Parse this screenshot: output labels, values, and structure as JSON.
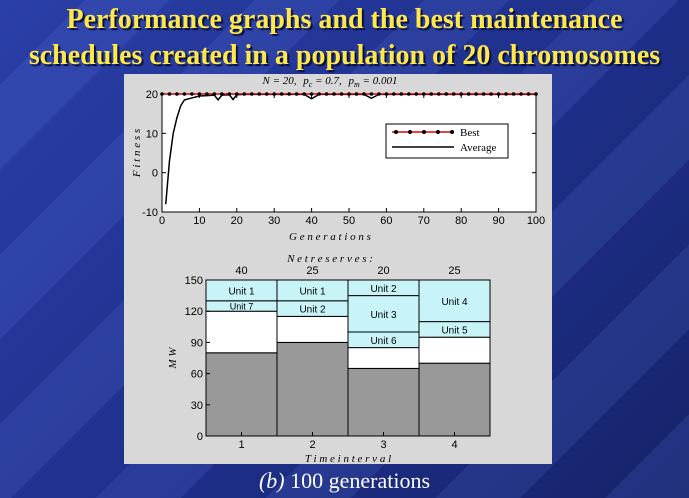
{
  "title": {
    "line1": "Performance graphs and the best maintenance",
    "line2": "schedules created in a population of 20 chromosomes"
  },
  "caption": {
    "label": "(b)",
    "text": "100 generations"
  },
  "colors": {
    "best": "#e00000",
    "average": "#000000",
    "unit_fill": "#c8f4f8",
    "base_fill": "#999999"
  },
  "chart_data": [
    {
      "type": "line",
      "title": "N = 20,  pc = 0.7,  pm = 0.001",
      "title_parts": {
        "n": "N = 20,",
        "pc": "p",
        "pc_sub": "c",
        "pc_val": " = 0.7,",
        "pm": "p",
        "pm_sub": "m",
        "pm_val": " = 0.001"
      },
      "xlabel": "G e n e r a t i o n s",
      "ylabel": "F i t n e s s",
      "xlim": [
        0,
        100
      ],
      "ylim": [
        -10,
        20
      ],
      "xticks": [
        0,
        10,
        20,
        30,
        40,
        50,
        60,
        70,
        80,
        90,
        100
      ],
      "yticks": [
        -10,
        0,
        10,
        20
      ],
      "legend": {
        "position": "top-right",
        "best": "Best",
        "average": "Average"
      },
      "series": [
        {
          "name": "Best",
          "x": [
            0,
            2,
            4,
            6,
            8,
            10,
            12,
            14,
            16,
            18,
            20,
            22,
            24,
            26,
            28,
            30,
            32,
            34,
            36,
            38,
            40,
            42,
            44,
            46,
            48,
            50,
            52,
            54,
            56,
            58,
            60,
            62,
            64,
            66,
            68,
            70,
            72,
            74,
            76,
            78,
            80,
            82,
            84,
            86,
            88,
            90,
            92,
            94,
            96,
            98,
            100
          ],
          "y": [
            20,
            20,
            20,
            20,
            20,
            20,
            20,
            20,
            20,
            20,
            20,
            20,
            20,
            20,
            20,
            20,
            20,
            20,
            20,
            20,
            20,
            20,
            20,
            20,
            20,
            20,
            20,
            20,
            20,
            20,
            20,
            20,
            20,
            20,
            20,
            20,
            20,
            20,
            20,
            20,
            20,
            20,
            20,
            20,
            20,
            20,
            20,
            20,
            20,
            20,
            20
          ]
        },
        {
          "name": "Average",
          "x": [
            1,
            2,
            3,
            4,
            5,
            6,
            8,
            10,
            12,
            14,
            15,
            16,
            18,
            19,
            20,
            22,
            30,
            38,
            40,
            42,
            50,
            54,
            56,
            58,
            60,
            100
          ],
          "y": [
            -8,
            3,
            10,
            14,
            17,
            18.5,
            19,
            19.5,
            19.6,
            19.7,
            18.5,
            19.7,
            19.8,
            18.6,
            19.8,
            19.9,
            19.9,
            19.9,
            18.8,
            19.9,
            19.9,
            19.9,
            18.9,
            19.9,
            19.9,
            19.9
          ]
        }
      ]
    },
    {
      "type": "bar",
      "title": "N e t   r e s e r v e s :",
      "xlabel": "T i m e   i n t e r v a l",
      "ylabel": "M W",
      "categories": [
        "1",
        "2",
        "3",
        "4"
      ],
      "net_reserves": [
        "40",
        "25",
        "20",
        "25"
      ],
      "ylim": [
        0,
        150
      ],
      "yticks": [
        0,
        30,
        60,
        90,
        120,
        150
      ],
      "base_load": [
        80,
        90,
        65,
        70
      ],
      "blocks": [
        [
          {
            "label": "",
            "from": 80,
            "to": 120,
            "filled": false
          },
          {
            "label": "Unit 7",
            "from": 120,
            "to": 130,
            "filled": true
          },
          {
            "label": "Unit 1",
            "from": 130,
            "to": 150,
            "filled": true
          }
        ],
        [
          {
            "label": "",
            "from": 90,
            "to": 115,
            "filled": false
          },
          {
            "label": "Unit 2",
            "from": 115,
            "to": 130,
            "filled": true
          },
          {
            "label": "Unit 1",
            "from": 130,
            "to": 150,
            "filled": true
          }
        ],
        [
          {
            "label": "",
            "from": 65,
            "to": 85,
            "filled": false
          },
          {
            "label": "Unit 6",
            "from": 85,
            "to": 100,
            "filled": true
          },
          {
            "label": "Unit 3",
            "from": 100,
            "to": 135,
            "filled": true
          },
          {
            "label": "Unit 2",
            "from": 135,
            "to": 150,
            "filled": true
          }
        ],
        [
          {
            "label": "",
            "from": 70,
            "to": 95,
            "filled": false
          },
          {
            "label": "Unit 5",
            "from": 95,
            "to": 110,
            "filled": true
          },
          {
            "label": "Unit 4",
            "from": 110,
            "to": 150,
            "filled": true
          }
        ]
      ]
    }
  ]
}
